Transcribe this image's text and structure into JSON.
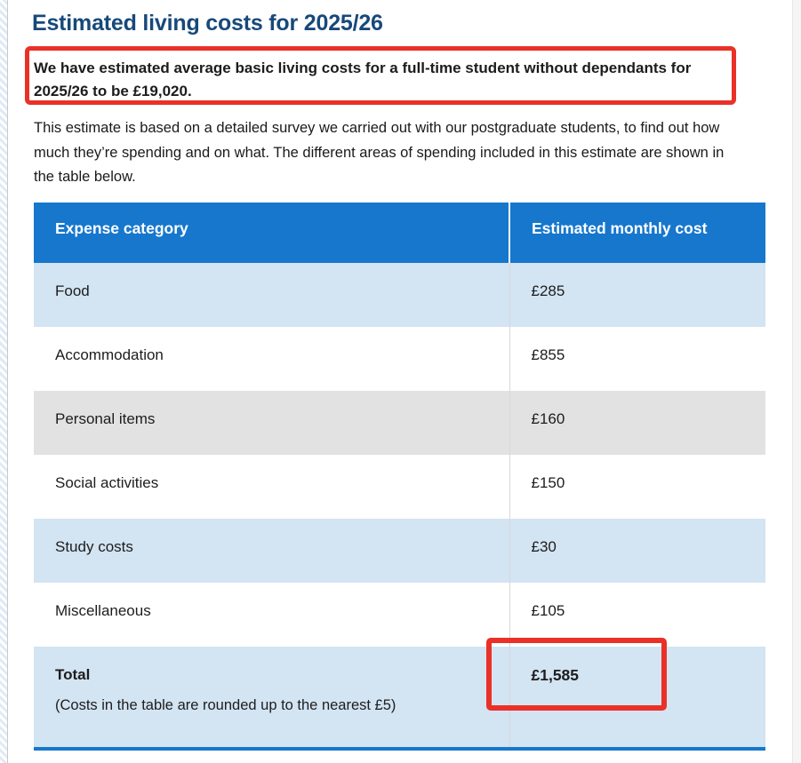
{
  "page": {
    "title": "Estimated living costs for 2025/26"
  },
  "highlight": {
    "text": "We have estimated average basic living costs for a full-time student without dependants for 2025/26 to be £19,020."
  },
  "intro": {
    "text": "This estimate is based on a detailed survey we carried out with our postgraduate students, to find out how much they’re spending and on what. The different areas of spending included in this estimate are shown in the table below."
  },
  "table": {
    "headers": [
      "Expense category",
      "Estimated monthly cost"
    ],
    "rows": [
      {
        "category": "Food",
        "cost": "£285"
      },
      {
        "category": "Accommodation",
        "cost": "£855"
      },
      {
        "category": "Personal items",
        "cost": "£160"
      },
      {
        "category": "Social activities",
        "cost": "£150"
      },
      {
        "category": "Study costs",
        "cost": "£30"
      },
      {
        "category": "Miscellaneous",
        "cost": "£105"
      }
    ],
    "total": {
      "label": "Total",
      "note": "(Costs in the table are rounded up to the nearest £5)",
      "cost": "£1,585"
    }
  },
  "colors": {
    "header_blue": "#1677cd",
    "row_light_blue": "#d3e4f3",
    "row_gray": "#e2e2e2",
    "annotation_red": "#e93128",
    "title_navy": "#17497a"
  }
}
